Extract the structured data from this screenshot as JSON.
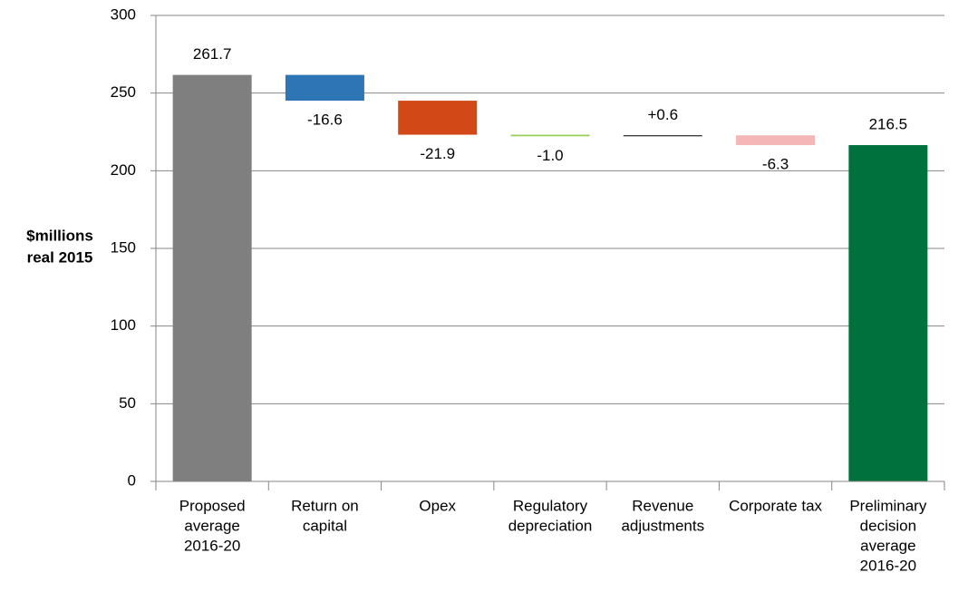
{
  "chart_data": {
    "type": "waterfall",
    "ylabel": [
      "$millions",
      "real 2015"
    ],
    "categories": [
      [
        "Proposed",
        "average",
        "2016-20"
      ],
      [
        "Return on",
        "capital"
      ],
      [
        "Opex"
      ],
      [
        "Regulatory",
        "depreciation"
      ],
      [
        "Revenue",
        "adjustments"
      ],
      [
        "Corporate tax"
      ],
      [
        "Preliminary",
        "decision",
        "average",
        "2016-20"
      ]
    ],
    "values": [
      261.7,
      -16.6,
      -21.9,
      -1.0,
      0.6,
      -6.3,
      216.5
    ],
    "value_labels": [
      "261.7",
      "-16.6",
      "-21.9",
      "-1.0",
      "+0.6",
      "-6.3",
      "216.5"
    ],
    "totals": [
      true,
      false,
      false,
      false,
      false,
      false,
      true
    ],
    "colors": [
      "#7f7f7f",
      "#2e75b6",
      "#d34817",
      "#92d050",
      "#000000",
      "#f4b6b6",
      "#00703c"
    ],
    "ylim": [
      0,
      300
    ],
    "yticks": [
      0,
      50,
      100,
      150,
      200,
      250,
      300
    ],
    "grid": true
  }
}
